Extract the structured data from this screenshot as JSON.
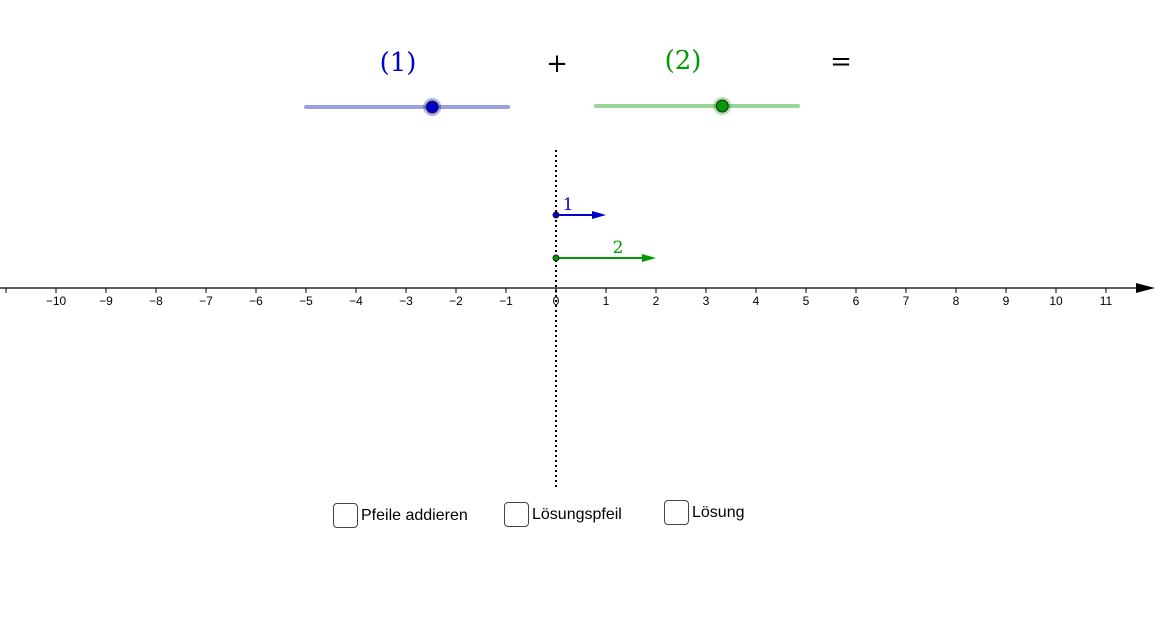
{
  "equation": {
    "term1": "(1)",
    "plus": "+",
    "term2": "(2)",
    "equals": "="
  },
  "colors": {
    "blue": "#0000cc",
    "blue_track": "#9a9fe0",
    "green": "#009900",
    "green_track": "#99d699",
    "axis": "#000000"
  },
  "sliders": [
    {
      "name": "slider-1",
      "min": -5,
      "max": -1,
      "value": -2.5,
      "color": "#0000cc",
      "track_color": "#9a9fe0"
    },
    {
      "name": "slider-2",
      "min": 1,
      "max": 5,
      "value": 3.5,
      "color": "#009900",
      "track_color": "#99d699"
    }
  ],
  "arrows": [
    {
      "name": "arrow-1",
      "label": "1",
      "start": 0,
      "end": 1,
      "color": "#0000cc"
    },
    {
      "name": "arrow-2",
      "label": "2",
      "start": 0,
      "end": 2,
      "color": "#009900"
    }
  ],
  "number_line": {
    "min": -10,
    "max": 11,
    "tick_labels": [
      "−10",
      "−9",
      "−8",
      "−7",
      "−6",
      "−5",
      "−4",
      "−3",
      "−2",
      "−1",
      "0",
      "1",
      "2",
      "3",
      "4",
      "5",
      "6",
      "7",
      "8",
      "9",
      "10",
      "11"
    ]
  },
  "checkboxes": [
    {
      "name": "checkbox-pfeile-addieren",
      "label": "Pfeile addieren",
      "checked": false
    },
    {
      "name": "checkbox-loesungspfeil",
      "label": "Lösungspfeil",
      "checked": false
    },
    {
      "name": "checkbox-loesung",
      "label": "Lösung",
      "checked": false
    }
  ]
}
